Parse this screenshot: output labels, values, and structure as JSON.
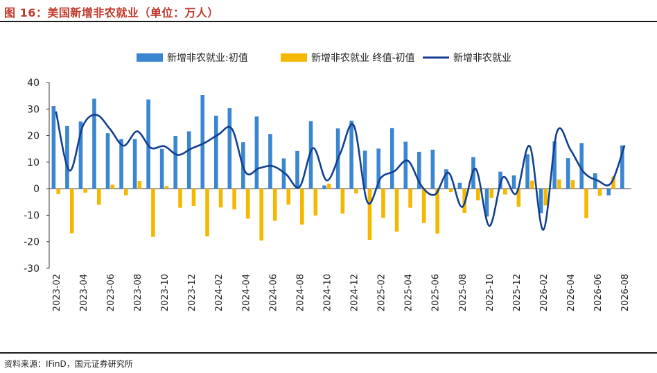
{
  "title": "图 16：美国新增非农就业（单位：万人）",
  "source": "资料来源：IFinD，国元证券研究所",
  "colors": {
    "initial": "#3a86d0",
    "revision": "#f5b800",
    "line": "#123f91",
    "title": "#c0392b"
  },
  "chart_data": {
    "type": "bar",
    "title": "",
    "xlabel": "",
    "ylabel": "",
    "ylim": [
      -30,
      40
    ],
    "yticks": [
      40,
      30,
      20,
      10,
      0,
      -10,
      -20,
      -30
    ],
    "legend_position": "top",
    "categories": [
      "2023-02",
      "2023-03",
      "2023-04",
      "2023-05",
      "2023-06",
      "2023-07",
      "2023-08",
      "2023-09",
      "2023-10",
      "2023-11",
      "2023-12",
      "2024-01",
      "2024-02",
      "2024-03",
      "2024-04",
      "2024-05",
      "2024-06",
      "2024-07",
      "2024-08",
      "2024-09",
      "2024-10",
      "2024-11",
      "2024-12",
      "2025-01",
      "2025-02",
      "2025-03",
      "2025-04",
      "2025-05",
      "2025-06",
      "2025-07",
      "2025-08",
      "2025-09",
      "2025-10",
      "2025-11",
      "2025-12",
      "2026-01",
      "2026-02",
      "2026-03",
      "2026-04",
      "2026-05",
      "2026-06",
      "2026-07",
      "2026-08"
    ],
    "tick_labels": [
      "2023-02",
      "2023-04",
      "2023-06",
      "2023-08",
      "2023-10",
      "2023-12",
      "2024-02",
      "2024-04",
      "2024-06",
      "2024-08",
      "2024-10",
      "2024-12",
      "2025-02",
      "2025-04",
      "2025-06",
      "2025-08",
      "2025-10",
      "2025-12",
      "2026-02",
      "2026-04",
      "2026-06",
      "2026-08"
    ],
    "series": [
      {
        "name": "新增非农就业:初值",
        "kind": "bar",
        "values": [
          31.1,
          23.6,
          25.3,
          33.9,
          20.9,
          18.7,
          18.7,
          33.6,
          15.0,
          19.9,
          21.6,
          35.3,
          27.5,
          30.3,
          17.5,
          27.2,
          20.6,
          11.4,
          14.2,
          25.4,
          1.2,
          22.7,
          25.6,
          14.3,
          15.1,
          22.8,
          17.7,
          13.9,
          14.7,
          7.3,
          2.2,
          11.9,
          -10.5,
          6.4,
          5.0,
          13.0,
          -9.2,
          17.8,
          11.5,
          17.2,
          5.8,
          -2.5,
          16.3
        ]
      },
      {
        "name": "新增非农就业 终值-初值",
        "kind": "bar",
        "values": [
          -2.0,
          -16.8,
          -1.5,
          -6.1,
          1.5,
          -2.5,
          2.9,
          -18.2,
          1.0,
          -7.2,
          -6.5,
          -18.0,
          -7.1,
          -7.8,
          -11.3,
          -19.5,
          -12.1,
          -6.0,
          -13.5,
          -10.1,
          1.9,
          -9.4,
          -1.8,
          -19.3,
          -11.0,
          -16.2,
          -7.2,
          -12.9,
          -16.9,
          -1.3,
          -9.1,
          -4.4,
          -3.5,
          -2.2,
          -6.8,
          3.0,
          -6.3,
          3.5,
          3.2,
          -11.1,
          -2.7,
          4.6,
          0.0
        ]
      },
      {
        "name": "新增非农就业",
        "kind": "line",
        "values": [
          29.1,
          6.8,
          23.8,
          27.8,
          22.4,
          16.2,
          21.6,
          15.4,
          16.0,
          12.7,
          15.1,
          17.3,
          20.4,
          22.5,
          6.2,
          7.7,
          8.5,
          5.4,
          0.7,
          15.3,
          3.1,
          13.3,
          23.8,
          -5.0,
          4.1,
          6.6,
          10.5,
          1.0,
          -2.2,
          6.0,
          -6.9,
          7.5,
          -14.0,
          4.2,
          -1.8,
          16.0,
          -15.5,
          21.3,
          14.7,
          6.1,
          3.1,
          2.1,
          16.3
        ]
      }
    ]
  }
}
